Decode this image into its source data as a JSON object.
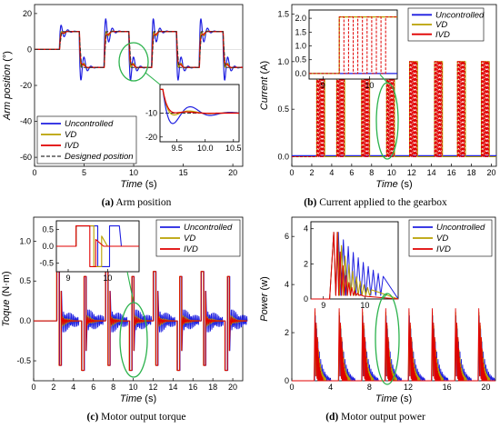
{
  "colors": {
    "uncontrolled": "#1f1fe0",
    "vd": "#b8a000",
    "ivd": "#e00000",
    "designed": "#333333",
    "highlight": "#2bb24c"
  },
  "chart_data": [
    {
      "id": "a",
      "type": "line",
      "caption_letter": "(a)",
      "caption_text": " Arm position",
      "xlabel": "Time",
      "xunit": " (s)",
      "ylabel": "Arm position",
      "yunit": " (°)",
      "xlim": [
        0,
        21
      ],
      "ylim": [
        -65,
        25
      ],
      "xticks": [
        "0",
        "5",
        "10",
        "15",
        "20"
      ],
      "xtickvals": [
        0,
        5,
        10,
        15,
        20
      ],
      "yticks": [
        "20",
        "0",
        "-20",
        "-40",
        "-60"
      ],
      "ytickvals": [
        20,
        0,
        -20,
        -40,
        -60
      ],
      "legend": [
        "Uncontrolled",
        "VD",
        "IVD",
        "Designed position"
      ],
      "inset": {
        "xticks": [
          "9.5",
          "10.0",
          "10.5"
        ],
        "xtickvals": [
          9.5,
          10.0,
          10.5
        ],
        "yticks": [
          "-10",
          "-20"
        ],
        "ytickvals": [
          -10,
          -20
        ],
        "xlim": [
          9.2,
          10.6
        ],
        "ylim": [
          -22,
          2
        ]
      },
      "steps": [
        {
          "t": 2.5,
          "from": 0,
          "to": 10
        },
        {
          "t": 4.5,
          "from": 10,
          "to": -10
        },
        {
          "t": 7.0,
          "from": -10,
          "to": 10
        },
        {
          "t": 9.5,
          "from": 10,
          "to": -10
        },
        {
          "t": 11.8,
          "from": -10,
          "to": 10
        },
        {
          "t": 14.3,
          "from": 10,
          "to": -10
        },
        {
          "t": 16.6,
          "from": -10,
          "to": 10
        },
        {
          "t": 19.0,
          "from": 10,
          "to": -10
        }
      ]
    },
    {
      "id": "b",
      "type": "line",
      "caption_letter": "(b)",
      "caption_text": " Current applied to the gearbox",
      "xlabel": "Time",
      "xunit": " (s)",
      "ylabel": "Current",
      "yunit": " (A)",
      "xlim": [
        0,
        20.5
      ],
      "ylim": [
        -0.1,
        1.6
      ],
      "xticks": [
        "0",
        "2",
        "4",
        "6",
        "8",
        "10",
        "12",
        "14",
        "16",
        "18",
        "20"
      ],
      "xtickvals": [
        0,
        2,
        4,
        6,
        8,
        10,
        12,
        14,
        16,
        18,
        20
      ],
      "yticks": [
        "1.5",
        "1.0",
        "0.5",
        "0.0"
      ],
      "ytickvals": [
        1.5,
        1.0,
        0.5,
        0.0
      ],
      "legend": [
        "Uncontrolled",
        "VD",
        "IVD"
      ],
      "inset": {
        "xticks": [
          "9",
          "10"
        ],
        "xtickvals": [
          9,
          10
        ],
        "yticks": [
          "2.0",
          "1.5",
          "1.0",
          "0.5",
          "0.0"
        ],
        "ytickvals": [
          2.0,
          1.5,
          1.0,
          0.5,
          0.0
        ],
        "xlim": [
          8.7,
          10.6
        ],
        "ylim": [
          -0.2,
          2.3
        ]
      },
      "pulses": [
        {
          "start": 2.5,
          "end": 3.3
        },
        {
          "start": 4.5,
          "end": 5.3
        },
        {
          "start": 7.0,
          "end": 7.8
        },
        {
          "start": 9.5,
          "end": 10.3
        },
        {
          "start": 11.8,
          "end": 12.6
        },
        {
          "start": 14.3,
          "end": 15.1
        },
        {
          "start": 16.6,
          "end": 17.4
        },
        {
          "start": 19.0,
          "end": 19.8
        }
      ]
    },
    {
      "id": "c",
      "type": "line",
      "caption_letter": "(c)",
      "caption_text": " Motor output torque",
      "xlabel": "Time",
      "xunit": " (s)",
      "ylabel": "Toque",
      "yunit": " (N·m)",
      "xlim": [
        0,
        21
      ],
      "ylim": [
        -0.75,
        1.3
      ],
      "xticks": [
        "0",
        "2",
        "4",
        "6",
        "8",
        "10",
        "12",
        "14",
        "16",
        "18",
        "20"
      ],
      "xtickvals": [
        0,
        2,
        4,
        6,
        8,
        10,
        12,
        14,
        16,
        18,
        20
      ],
      "yticks": [
        "1.0",
        "0.5",
        "0.0",
        "-0.5"
      ],
      "ytickvals": [
        1.0,
        0.5,
        0.0,
        -0.5
      ],
      "legend": [
        "Uncontrolled",
        "VD",
        "IVD"
      ],
      "inset": {
        "xticks": [
          "9",
          "10"
        ],
        "xtickvals": [
          9,
          10
        ],
        "yticks": [
          "0.5",
          "0.0",
          "-0.5"
        ],
        "ytickvals": [
          0.5,
          0.0,
          -0.5
        ],
        "xlim": [
          8.7,
          10.8
        ],
        "ylim": [
          -0.75,
          0.75
        ]
      },
      "peak": 0.62
    },
    {
      "id": "d",
      "type": "line",
      "caption_letter": "(d)",
      "caption_text": " Motor output power",
      "xlabel": "Time",
      "xunit": " (s)",
      "ylabel": "Power",
      "yunit": " (w)",
      "xlim": [
        0,
        21
      ],
      "ylim": [
        0,
        6.8
      ],
      "xticks": [
        "0",
        "4",
        "8",
        "12",
        "16",
        "20"
      ],
      "xtickvals": [
        0,
        4,
        8,
        12,
        16,
        20
      ],
      "yticks": [
        "6",
        "4",
        "2",
        "0"
      ],
      "ytickvals": [
        6,
        4,
        2,
        0
      ],
      "legend": [
        "Uncontrolled",
        "VD",
        "IVD"
      ],
      "inset": {
        "xticks": [
          "9",
          "10"
        ],
        "xtickvals": [
          9,
          10
        ],
        "yticks": [
          "4",
          "2",
          "0"
        ],
        "ytickvals": [
          4,
          2,
          0
        ],
        "xlim": [
          8.7,
          10.8
        ],
        "ylim": [
          0,
          4.4
        ]
      },
      "peak": 3.0
    }
  ]
}
